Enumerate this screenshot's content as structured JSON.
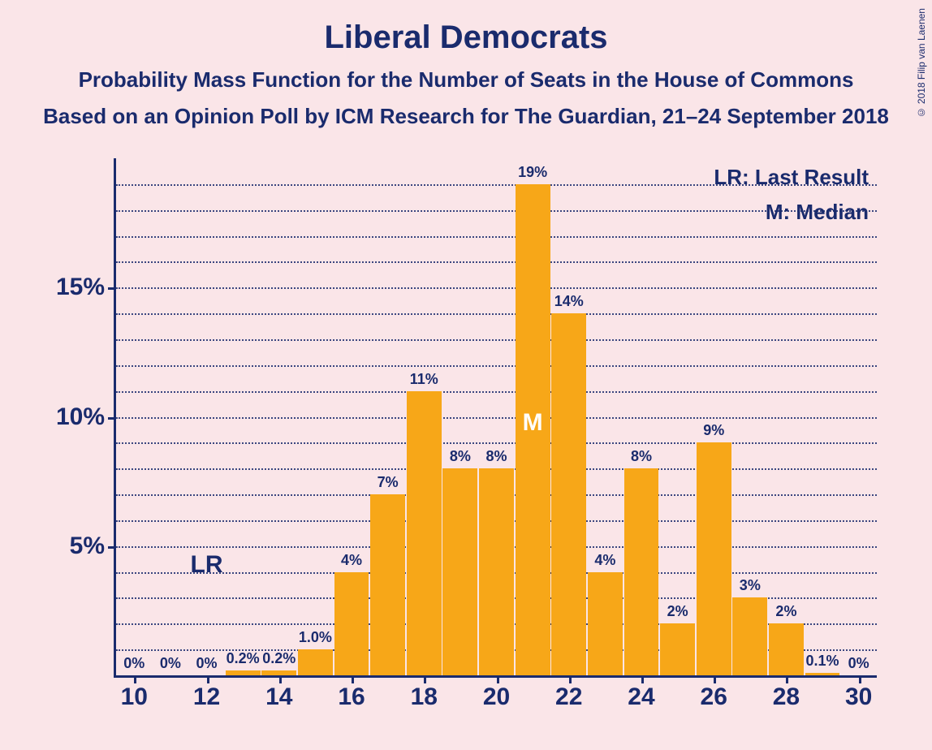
{
  "title": "Liberal Democrats",
  "subtitle1": "Probability Mass Function for the Number of Seats in the House of Commons",
  "subtitle2": "Based on an Opinion Poll by ICM Research for The Guardian, 21–24 September 2018",
  "copyright": "© 2018 Filip van Laenen",
  "legend": {
    "lr": "LR: Last Result",
    "m": "M: Median"
  },
  "chart": {
    "type": "bar",
    "bar_color": "#f7a718",
    "text_color": "#1a2b6d",
    "background_color": "#fae5e8",
    "grid_color": "#1a2b6d",
    "axis_color": "#1a2b6d",
    "title_fontsize": 40,
    "subtitle_fontsize": 26,
    "axis_label_fontsize": 30,
    "bar_label_fontsize": 18,
    "legend_fontsize": 26,
    "ylim": [
      0,
      20
    ],
    "y_major_ticks": [
      5,
      10,
      15
    ],
    "y_minor_step": 1,
    "xlim": [
      9.5,
      30.5
    ],
    "x_ticks": [
      10,
      12,
      14,
      16,
      18,
      20,
      22,
      24,
      26,
      28,
      30
    ],
    "bar_width_ratio": 0.96,
    "data": [
      {
        "x": 10,
        "value": 0,
        "label": "0%"
      },
      {
        "x": 11,
        "value": 0,
        "label": "0%"
      },
      {
        "x": 12,
        "value": 0,
        "label": "0%"
      },
      {
        "x": 13,
        "value": 0.2,
        "label": "0.2%"
      },
      {
        "x": 14,
        "value": 0.2,
        "label": "0.2%"
      },
      {
        "x": 15,
        "value": 1.0,
        "label": "1.0%"
      },
      {
        "x": 16,
        "value": 4,
        "label": "4%"
      },
      {
        "x": 17,
        "value": 7,
        "label": "7%"
      },
      {
        "x": 18,
        "value": 11,
        "label": "11%"
      },
      {
        "x": 19,
        "value": 8,
        "label": "8%"
      },
      {
        "x": 20,
        "value": 8,
        "label": "8%"
      },
      {
        "x": 21,
        "value": 19,
        "label": "19%"
      },
      {
        "x": 22,
        "value": 14,
        "label": "14%"
      },
      {
        "x": 23,
        "value": 4,
        "label": "4%"
      },
      {
        "x": 24,
        "value": 8,
        "label": "8%"
      },
      {
        "x": 25,
        "value": 2,
        "label": "2%"
      },
      {
        "x": 26,
        "value": 9,
        "label": "9%"
      },
      {
        "x": 27,
        "value": 3,
        "label": "3%"
      },
      {
        "x": 28,
        "value": 2,
        "label": "2%"
      },
      {
        "x": 29,
        "value": 0.1,
        "label": "0.1%"
      },
      {
        "x": 30,
        "value": 0,
        "label": "0%"
      }
    ],
    "lr_marker": {
      "x": 12,
      "text": "LR",
      "y_percent_of_plot": 76
    },
    "m_marker": {
      "x": 21,
      "text": "M",
      "y_percent_of_plot": 48.5
    }
  }
}
